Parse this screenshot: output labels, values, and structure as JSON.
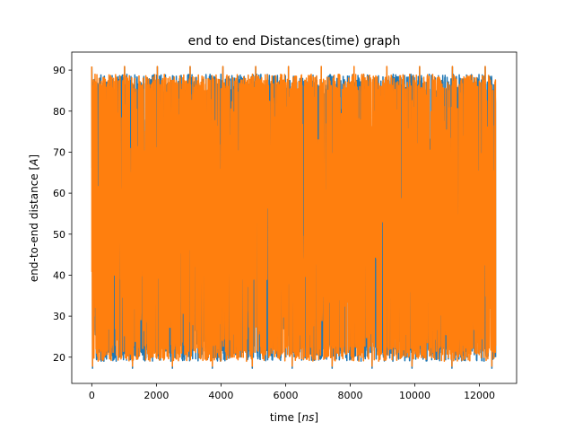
{
  "chart_data": {
    "type": "line",
    "title": "end to end Distances(time) graph",
    "xlabel": "time [ns]",
    "xlabel_parts": {
      "text": "time [",
      "var": "ns",
      "close": "]"
    },
    "ylabel": "end-to-end distance [A]",
    "ylabel_parts": {
      "text": "end-to-end distance [",
      "var": "A",
      "close": "]"
    },
    "xlim": [
      -620,
      13150
    ],
    "ylim": [
      13.6,
      94.4
    ],
    "x_ticks": [
      0,
      2000,
      4000,
      6000,
      8000,
      10000,
      12000
    ],
    "x_tick_labels": [
      "0",
      "2000",
      "4000",
      "6000",
      "8000",
      "10000",
      "12000"
    ],
    "y_ticks": [
      20,
      30,
      40,
      50,
      60,
      70,
      80,
      90
    ],
    "y_tick_labels": [
      "20",
      "30",
      "40",
      "50",
      "60",
      "70",
      "80",
      "90"
    ],
    "grid": false,
    "legend": "none",
    "x_range": [
      0,
      12500
    ],
    "series": [
      {
        "color": "#1f77b4",
        "y_min": 17.3,
        "y_max": 90.8,
        "y_typical_low": 19,
        "y_typical_high": 89
      },
      {
        "color": "#ff7f0e",
        "y_min": 17.8,
        "y_max": 90.9,
        "y_typical_low": 19,
        "y_typical_high": 89
      }
    ]
  }
}
